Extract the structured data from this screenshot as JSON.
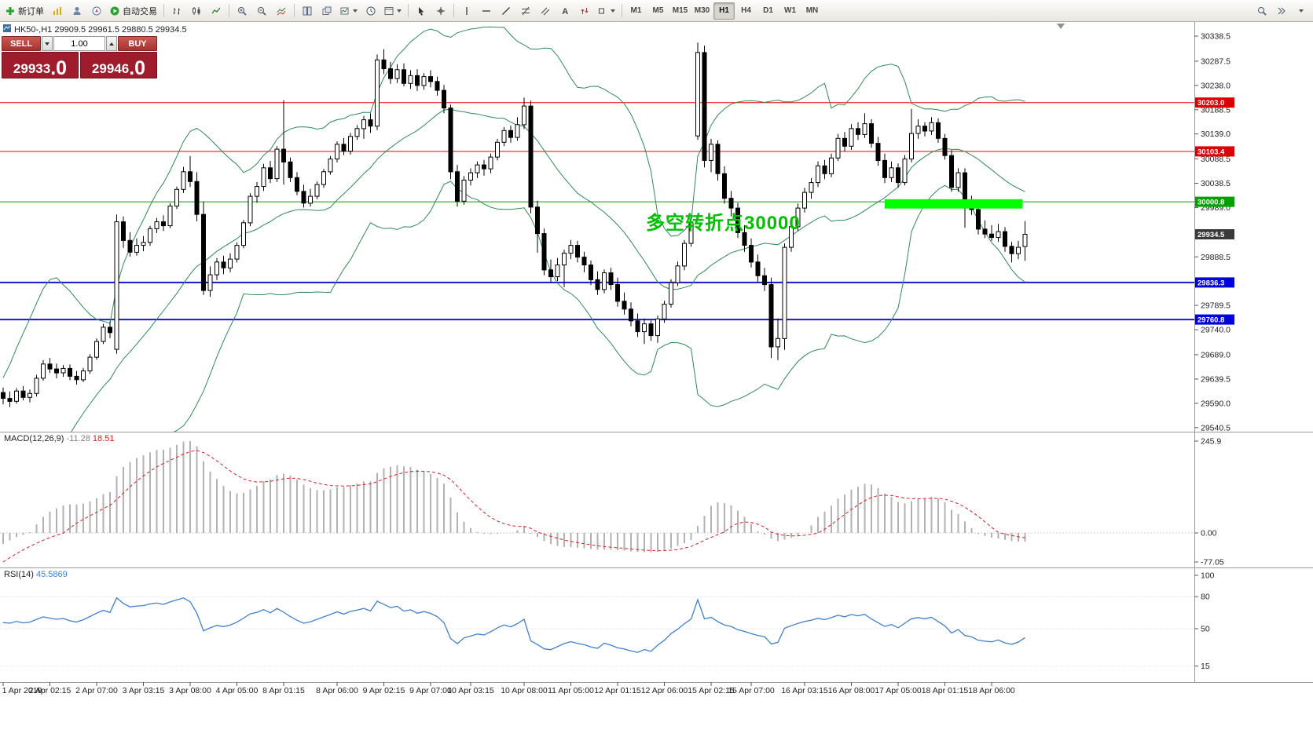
{
  "toolbar": {
    "new_order": "新订单",
    "autotrading": "自动交易",
    "timeframes": [
      "M1",
      "M5",
      "M15",
      "M30",
      "H1",
      "H4",
      "D1",
      "W1",
      "MN"
    ],
    "active_timeframe": "H1"
  },
  "symbol_info": {
    "text": "HK50-,H1 29909.5 29961.5 29880.5 29934.5"
  },
  "trade_panel": {
    "sell_label": "SELL",
    "buy_label": "BUY",
    "volume": "1.00",
    "sell_price": "29933",
    "sell_frac": ".0",
    "buy_price": "29946",
    "buy_frac": ".0"
  },
  "annotation": {
    "text": "多空转折点30000",
    "color": "#00c000"
  },
  "chart_data": {
    "type": "candlestick",
    "symbol": "HK50-",
    "timeframe": "H1",
    "ohlc_current": {
      "open": 29909.5,
      "high": 29961.5,
      "low": 29880.5,
      "close": 29934.5
    },
    "colors": {
      "bull": "#ffffff",
      "bear": "#000000",
      "outline": "#000000",
      "bollinger": "#2e8b57"
    },
    "price_axis_ticks": [
      30338.5,
      30287.5,
      30238.0,
      30188.5,
      30139.0,
      30088.5,
      30038.5,
      29989.0,
      29888.5,
      29789.5,
      29740.0,
      29689.0,
      29639.5,
      29590.0,
      29540.5
    ],
    "price_tags": [
      {
        "label": "30203.0",
        "price": 30203.0,
        "bg": "#dd0000"
      },
      {
        "label": "30103.4",
        "price": 30103.4,
        "bg": "#dd0000"
      },
      {
        "label": "30000.8",
        "price": 30000.8,
        "bg": "#00a000"
      },
      {
        "label": "29934.5",
        "price": 29934.5,
        "bg": "#3a3a3a"
      },
      {
        "label": "29836.3",
        "price": 29836.3,
        "bg": "#0000dd"
      },
      {
        "label": "29760.8",
        "price": 29760.8,
        "bg": "#0000dd"
      }
    ],
    "horizontal_lines": [
      {
        "price": 30203.0,
        "color": "#ee0000",
        "width": 1
      },
      {
        "price": 30103.4,
        "color": "#ee0000",
        "width": 1
      },
      {
        "price": 30000.8,
        "color": "#00a000",
        "width": 1
      },
      {
        "price": 29836.3,
        "color": "#1414dd",
        "width": 2
      },
      {
        "price": 29760.8,
        "color": "#1414dd",
        "width": 2
      }
    ],
    "highlight_rect": {
      "i1": 132,
      "i2": 152.6,
      "p1": 30006,
      "p2": 29987,
      "color": "#00ff00"
    },
    "bollinger": {
      "period": 20,
      "deviation": 2
    },
    "macd": {
      "name": "MACD(12,26,9)",
      "main_value": "-11.28",
      "signal_value": "18.51",
      "axis_labels": [
        "245.9",
        "0.00",
        "-77.05"
      ],
      "hist_color": "#b2b2b2",
      "signal_color": "#d82020"
    },
    "rsi": {
      "name": "RSI(14)",
      "value": "45.5869",
      "axis_labels": [
        "100",
        "80",
        "50",
        "15"
      ],
      "color": "#4080d0"
    },
    "time_labels": [
      [
        0,
        "1 Apr 2019"
      ],
      [
        7,
        "2 Apr 02:15"
      ],
      [
        14,
        "2 Apr 07:00"
      ],
      [
        21,
        "3 Apr 03:15"
      ],
      [
        28,
        "3 Apr 08:00"
      ],
      [
        35,
        "4 Apr 05:00"
      ],
      [
        42,
        "8 Apr 01:15"
      ],
      [
        50,
        "8 Apr 06:00"
      ],
      [
        57,
        "9 Apr 02:15"
      ],
      [
        64,
        "9 Apr 07:00"
      ],
      [
        70,
        "10 Apr 03:15"
      ],
      [
        78,
        "10 Apr 08:00"
      ],
      [
        85,
        "11 Apr 05:00"
      ],
      [
        92,
        "12 Apr 01:15"
      ],
      [
        99,
        "12 Apr 06:00"
      ],
      [
        106,
        "15 Apr 02:15"
      ],
      [
        112,
        "15 Apr 07:00"
      ],
      [
        120,
        "16 Apr 03:15"
      ],
      [
        127,
        "16 Apr 08:00"
      ],
      [
        134,
        "17 Apr 05:00"
      ],
      [
        141,
        "18 Apr 01:15"
      ],
      [
        148,
        "18 Apr 06:00"
      ]
    ],
    "candles": [
      [
        29612,
        29622,
        29588,
        29600
      ],
      [
        29600,
        29614,
        29582,
        29594
      ],
      [
        29594,
        29621,
        29589,
        29615
      ],
      [
        29615,
        29625,
        29596,
        29602
      ],
      [
        29602,
        29618,
        29592,
        29610
      ],
      [
        29610,
        29648,
        29604,
        29641
      ],
      [
        29641,
        29678,
        29636,
        29670
      ],
      [
        29670,
        29682,
        29652,
        29660
      ],
      [
        29660,
        29671,
        29641,
        29652
      ],
      [
        29652,
        29668,
        29644,
        29661
      ],
      [
        29661,
        29669,
        29637,
        29645
      ],
      [
        29645,
        29656,
        29628,
        29638
      ],
      [
        29638,
        29662,
        29633,
        29656
      ],
      [
        29656,
        29690,
        29650,
        29684
      ],
      [
        29684,
        29722,
        29679,
        29716
      ],
      [
        29716,
        29752,
        29711,
        29745
      ],
      [
        29745,
        29757,
        29723,
        29734
      ],
      [
        29700,
        29975,
        29691,
        29960
      ],
      [
        29960,
        29971,
        29907,
        29922
      ],
      [
        29922,
        29939,
        29889,
        29898
      ],
      [
        29898,
        29926,
        29891,
        29912
      ],
      [
        29912,
        29931,
        29900,
        29918
      ],
      [
        29918,
        29952,
        29911,
        29946
      ],
      [
        29946,
        29968,
        29937,
        29960
      ],
      [
        29960,
        29973,
        29941,
        29952
      ],
      [
        29952,
        29998,
        29947,
        29992
      ],
      [
        29992,
        30032,
        29986,
        30026
      ],
      [
        30026,
        30072,
        30019,
        30062
      ],
      [
        30062,
        30094,
        30031,
        30042
      ],
      [
        30042,
        30061,
        29961,
        29975
      ],
      [
        29975,
        30001,
        29811,
        29820
      ],
      [
        29820,
        29869,
        29807,
        29852
      ],
      [
        29852,
        29886,
        29841,
        29878
      ],
      [
        29878,
        29891,
        29853,
        29866
      ],
      [
        29866,
        29896,
        29857,
        29884
      ],
      [
        29884,
        29918,
        29877,
        29912
      ],
      [
        29912,
        29964,
        29906,
        29958
      ],
      [
        29958,
        30018,
        29951,
        30012
      ],
      [
        30012,
        30041,
        29999,
        30032
      ],
      [
        30032,
        30078,
        30023,
        30070
      ],
      [
        30070,
        30084,
        30039,
        30048
      ],
      [
        30048,
        30114,
        30041,
        30108
      ],
      [
        30108,
        30208,
        30036,
        30082
      ],
      [
        30082,
        30091,
        30041,
        30050
      ],
      [
        30050,
        30061,
        30014,
        30022
      ],
      [
        30022,
        30036,
        29989,
        29998
      ],
      [
        29998,
        30027,
        29991,
        30012
      ],
      [
        30012,
        30042,
        30006,
        30036
      ],
      [
        30036,
        30068,
        30029,
        30062
      ],
      [
        30062,
        30094,
        30056,
        30088
      ],
      [
        30088,
        30124,
        30081,
        30118
      ],
      [
        30118,
        30131,
        30096,
        30104
      ],
      [
        30104,
        30141,
        30097,
        30134
      ],
      [
        30134,
        30157,
        30127,
        30150
      ],
      [
        30150,
        30176,
        30129,
        30168
      ],
      [
        30168,
        30181,
        30141,
        30155
      ],
      [
        30155,
        30301,
        30147,
        30290
      ],
      [
        30290,
        30312,
        30261,
        30272
      ],
      [
        30272,
        30286,
        30241,
        30252
      ],
      [
        30252,
        30281,
        30243,
        30270
      ],
      [
        30270,
        30283,
        30236,
        30242
      ],
      [
        30242,
        30269,
        30231,
        30258
      ],
      [
        30258,
        30271,
        30227,
        30238
      ],
      [
        30238,
        30263,
        30229,
        30256
      ],
      [
        30256,
        30269,
        30234,
        30246
      ],
      [
        30246,
        30256,
        30217,
        30228
      ],
      [
        30228,
        30239,
        30181,
        30192
      ],
      [
        30192,
        30199,
        30047,
        30062
      ],
      [
        30062,
        30076,
        29991,
        30002
      ],
      [
        30002,
        30053,
        29995,
        30045
      ],
      [
        30045,
        30069,
        30034,
        30060
      ],
      [
        30060,
        30083,
        30049,
        30076
      ],
      [
        30076,
        30086,
        30054,
        30068
      ],
      [
        30068,
        30099,
        30059,
        30092
      ],
      [
        30092,
        30129,
        30085,
        30122
      ],
      [
        30122,
        30153,
        30114,
        30146
      ],
      [
        30146,
        30156,
        30121,
        30132
      ],
      [
        30132,
        30173,
        30125,
        30158
      ],
      [
        30158,
        30213,
        30149,
        30196
      ],
      [
        30196,
        30207,
        29977,
        29990
      ],
      [
        29990,
        30003,
        29897,
        29936
      ],
      [
        29936,
        29946,
        29851,
        29862
      ],
      [
        29862,
        29883,
        29837,
        29848
      ],
      [
        29848,
        29886,
        29839,
        29872
      ],
      [
        29872,
        29903,
        29827,
        29896
      ],
      [
        29896,
        29923,
        29884,
        29912
      ],
      [
        29912,
        29921,
        29877,
        29888
      ],
      [
        29888,
        29899,
        29857,
        29872
      ],
      [
        29872,
        29881,
        29831,
        29842
      ],
      [
        29842,
        29859,
        29811,
        29822
      ],
      [
        29822,
        29863,
        29814,
        29856
      ],
      [
        29856,
        29866,
        29821,
        29832
      ],
      [
        29832,
        29846,
        29787,
        29798
      ],
      [
        29798,
        29816,
        29771,
        29782
      ],
      [
        29782,
        29796,
        29747,
        29758
      ],
      [
        29758,
        29773,
        29725,
        29736
      ],
      [
        29736,
        29763,
        29711,
        29752
      ],
      [
        29752,
        29759,
        29717,
        29728
      ],
      [
        29728,
        29769,
        29713,
        29762
      ],
      [
        29762,
        29799,
        29754,
        29792
      ],
      [
        29792,
        29843,
        29785,
        29836
      ],
      [
        29836,
        29879,
        29829,
        29870
      ],
      [
        29870,
        29923,
        29861,
        29916
      ],
      [
        29916,
        29969,
        29909,
        29960
      ],
      [
        30135,
        30325,
        30127,
        30305
      ],
      [
        30305,
        30319,
        30071,
        30085
      ],
      [
        30085,
        30129,
        30061,
        30118
      ],
      [
        30118,
        30126,
        30044,
        30058
      ],
      [
        30058,
        30073,
        29997,
        30008
      ],
      [
        30008,
        30023,
        29971,
        29988
      ],
      [
        29988,
        29999,
        29927,
        29938
      ],
      [
        29938,
        29953,
        29899,
        29912
      ],
      [
        29912,
        29926,
        29867,
        29878
      ],
      [
        29878,
        29893,
        29837,
        29850
      ],
      [
        29850,
        29866,
        29819,
        29832
      ],
      [
        29832,
        29846,
        29682,
        29705
      ],
      [
        29705,
        29763,
        29678,
        29722
      ],
      [
        29722,
        29916,
        29699,
        29908
      ],
      [
        29908,
        29959,
        29899,
        29950
      ],
      [
        29950,
        29997,
        29941,
        29988
      ],
      [
        29988,
        30029,
        29979,
        30020
      ],
      [
        30020,
        30049,
        30007,
        30040
      ],
      [
        30040,
        30083,
        30031,
        30074
      ],
      [
        30074,
        30086,
        30047,
        30058
      ],
      [
        30058,
        30099,
        30051,
        30090
      ],
      [
        30090,
        30139,
        30084,
        30130
      ],
      [
        30130,
        30143,
        30104,
        30114
      ],
      [
        30114,
        30159,
        30107,
        30150
      ],
      [
        30150,
        30163,
        30127,
        30138
      ],
      [
        30138,
        30181,
        30131,
        30160
      ],
      [
        30160,
        30169,
        30111,
        30120
      ],
      [
        30120,
        30133,
        30074,
        30085
      ],
      [
        30085,
        30099,
        30039,
        30050
      ],
      [
        30050,
        30083,
        30041,
        30070
      ],
      [
        30070,
        30079,
        30029,
        30040
      ],
      [
        30040,
        30096,
        30034,
        30088
      ],
      [
        30088,
        30190,
        30081,
        30140
      ],
      [
        30140,
        30169,
        30129,
        30155
      ],
      [
        30155,
        30163,
        30134,
        30145
      ],
      [
        30145,
        30173,
        30137,
        30162
      ],
      [
        30162,
        30171,
        30121,
        30130
      ],
      [
        30130,
        30139,
        30087,
        30095
      ],
      [
        30095,
        30106,
        30021,
        30030
      ],
      [
        30030,
        30069,
        30021,
        30060
      ],
      [
        30060,
        30069,
        29948,
        30000
      ],
      [
        30000,
        30013,
        29974,
        29985
      ],
      [
        29985,
        29996,
        29934,
        29945
      ],
      [
        29945,
        29963,
        29927,
        29935
      ],
      [
        29935,
        29953,
        29921,
        29928
      ],
      [
        29928,
        29956,
        29919,
        29940
      ],
      [
        29940,
        29949,
        29899,
        29910
      ],
      [
        29910,
        29919,
        29877,
        29895
      ],
      [
        29895,
        29921,
        29884,
        29908
      ],
      [
        29909.5,
        29961.5,
        29880.5,
        29934.5
      ]
    ]
  }
}
